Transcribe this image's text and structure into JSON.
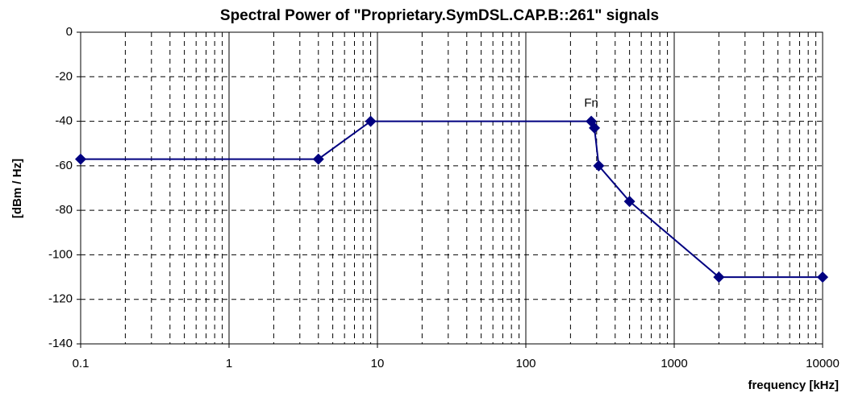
{
  "chart_data": {
    "type": "line",
    "title": "Spectral Power of \"Proprietary.SymDSL.CAP.B::261\" signals",
    "x_label": "frequency [kHz]",
    "y_label": "[dBm / Hz]",
    "annotation": "Fn",
    "x_log": true,
    "grid": true,
    "x": [
      0.1,
      4,
      9,
      276,
      290,
      310,
      500,
      2000,
      10000
    ],
    "series": [
      {
        "name": "",
        "color": "#000080",
        "values": [
          -57,
          -57,
          -40,
          -40,
          -43,
          -60,
          -76,
          -110,
          -110
        ]
      }
    ],
    "xlim": [
      0.1,
      10000
    ],
    "xticks": [
      0.1,
      1,
      10,
      100,
      1000,
      10000
    ],
    "ylim": [
      -140,
      0
    ],
    "yticks": [
      -140,
      -120,
      -100,
      -80,
      -60,
      -40,
      -20,
      0
    ]
  }
}
